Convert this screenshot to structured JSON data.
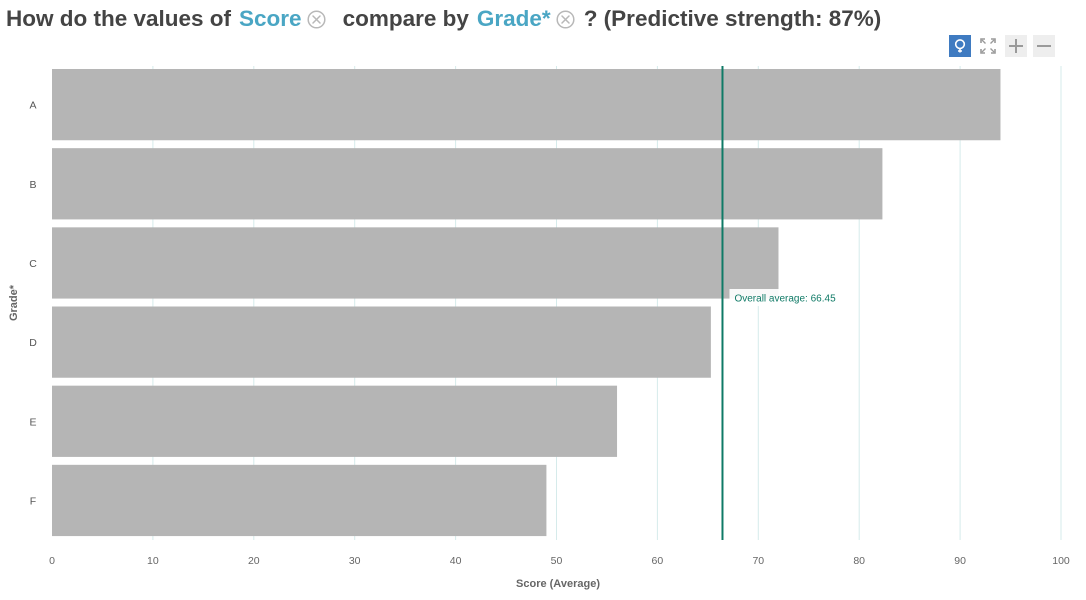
{
  "question": {
    "prefix": "How do the values of",
    "measure": "Score",
    "middle": "compare by",
    "dimension": "Grade*",
    "suffix": "? (Predictive strength: 87%)"
  },
  "toolbar": {
    "icons": [
      "insight-lightbulb-icon",
      "fullscreen-icon",
      "zoom-in-icon",
      "zoom-out-icon"
    ],
    "active_color": "#3f7bc1"
  },
  "chart_data": {
    "type": "bar",
    "orientation": "horizontal",
    "categories": [
      "A",
      "B",
      "C",
      "D",
      "E",
      "F"
    ],
    "values": [
      94,
      82.3,
      72,
      65.3,
      56,
      49
    ],
    "xlabel": "Score (Average)",
    "ylabel": "Grade*",
    "xlim": [
      0,
      100
    ],
    "xticks": [
      "0",
      "10",
      "20",
      "30",
      "40",
      "50",
      "60",
      "70",
      "80",
      "90",
      "100"
    ],
    "grid": true,
    "bar_color": "#b5b5b5",
    "reference_line": {
      "value": 66.45,
      "label": "Overall average: 66.45",
      "color": "#0f7a66"
    }
  }
}
